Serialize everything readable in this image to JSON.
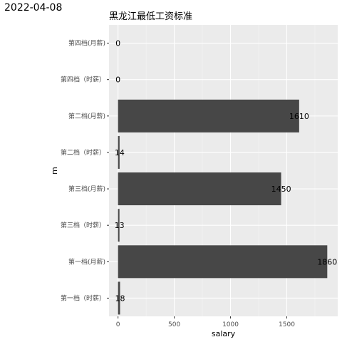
{
  "stamp": "2022-04-08",
  "chart_data": {
    "type": "bar",
    "orientation": "horizontal",
    "title": "黑龙江最低工资标准",
    "xlabel": "salary",
    "ylabel": "m",
    "categories": [
      "第四档(月薪)",
      "第四档（时薪）",
      "第二档(月薪)",
      "第二档（时薪）",
      "第三档(月薪)",
      "第三档（时薪）",
      "第一档(月薪)",
      "第一档（时薪）"
    ],
    "values": [
      0,
      0,
      1610,
      14,
      1450,
      13,
      1860,
      18
    ],
    "data_labels": [
      "0",
      "0",
      "1610",
      "14",
      "1450",
      "13",
      "1860",
      "18"
    ],
    "xlim": [
      -80,
      1953
    ],
    "xticks": [
      0,
      500,
      1000,
      1500
    ],
    "xtick_labels": [
      "0",
      "500",
      "1000",
      "1500"
    ],
    "bar_color": "#474747",
    "panel_color": "#ebebeb",
    "grid": true
  }
}
